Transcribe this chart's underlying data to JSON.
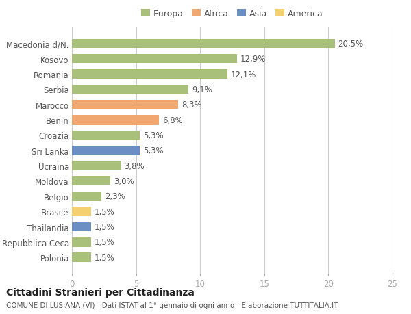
{
  "categories": [
    "Macedonia d/N.",
    "Kosovo",
    "Romania",
    "Serbia",
    "Marocco",
    "Benin",
    "Croazia",
    "Sri Lanka",
    "Ucraina",
    "Moldova",
    "Belgio",
    "Brasile",
    "Thailandia",
    "Repubblica Ceca",
    "Polonia"
  ],
  "values": [
    20.5,
    12.9,
    12.1,
    9.1,
    8.3,
    6.8,
    5.3,
    5.3,
    3.8,
    3.0,
    2.3,
    1.5,
    1.5,
    1.5,
    1.5
  ],
  "labels": [
    "20,5%",
    "12,9%",
    "12,1%",
    "9,1%",
    "8,3%",
    "6,8%",
    "5,3%",
    "5,3%",
    "3,8%",
    "3,0%",
    "2,3%",
    "1,5%",
    "1,5%",
    "1,5%",
    "1,5%"
  ],
  "colors": [
    "#a8c07a",
    "#a8c07a",
    "#a8c07a",
    "#a8c07a",
    "#f0a870",
    "#f0a870",
    "#a8c07a",
    "#6b8fc4",
    "#a8c07a",
    "#a8c07a",
    "#a8c07a",
    "#f5d070",
    "#6b8fc4",
    "#a8c07a",
    "#a8c07a"
  ],
  "legend_labels": [
    "Europa",
    "Africa",
    "Asia",
    "America"
  ],
  "legend_colors": [
    "#a8c07a",
    "#f0a870",
    "#6b8fc4",
    "#f5d070"
  ],
  "xlim": [
    0,
    25
  ],
  "xticks": [
    0,
    5,
    10,
    15,
    20,
    25
  ],
  "title": "Cittadini Stranieri per Cittadinanza",
  "subtitle": "COMUNE DI LUSIANA (VI) - Dati ISTAT al 1° gennaio di ogni anno - Elaborazione TUTTITALIA.IT",
  "bg_color": "#ffffff",
  "grid_color": "#cccccc",
  "bar_height": 0.6,
  "label_fontsize": 8.5,
  "tick_fontsize": 8.5,
  "title_fontsize": 10,
  "subtitle_fontsize": 7.5
}
